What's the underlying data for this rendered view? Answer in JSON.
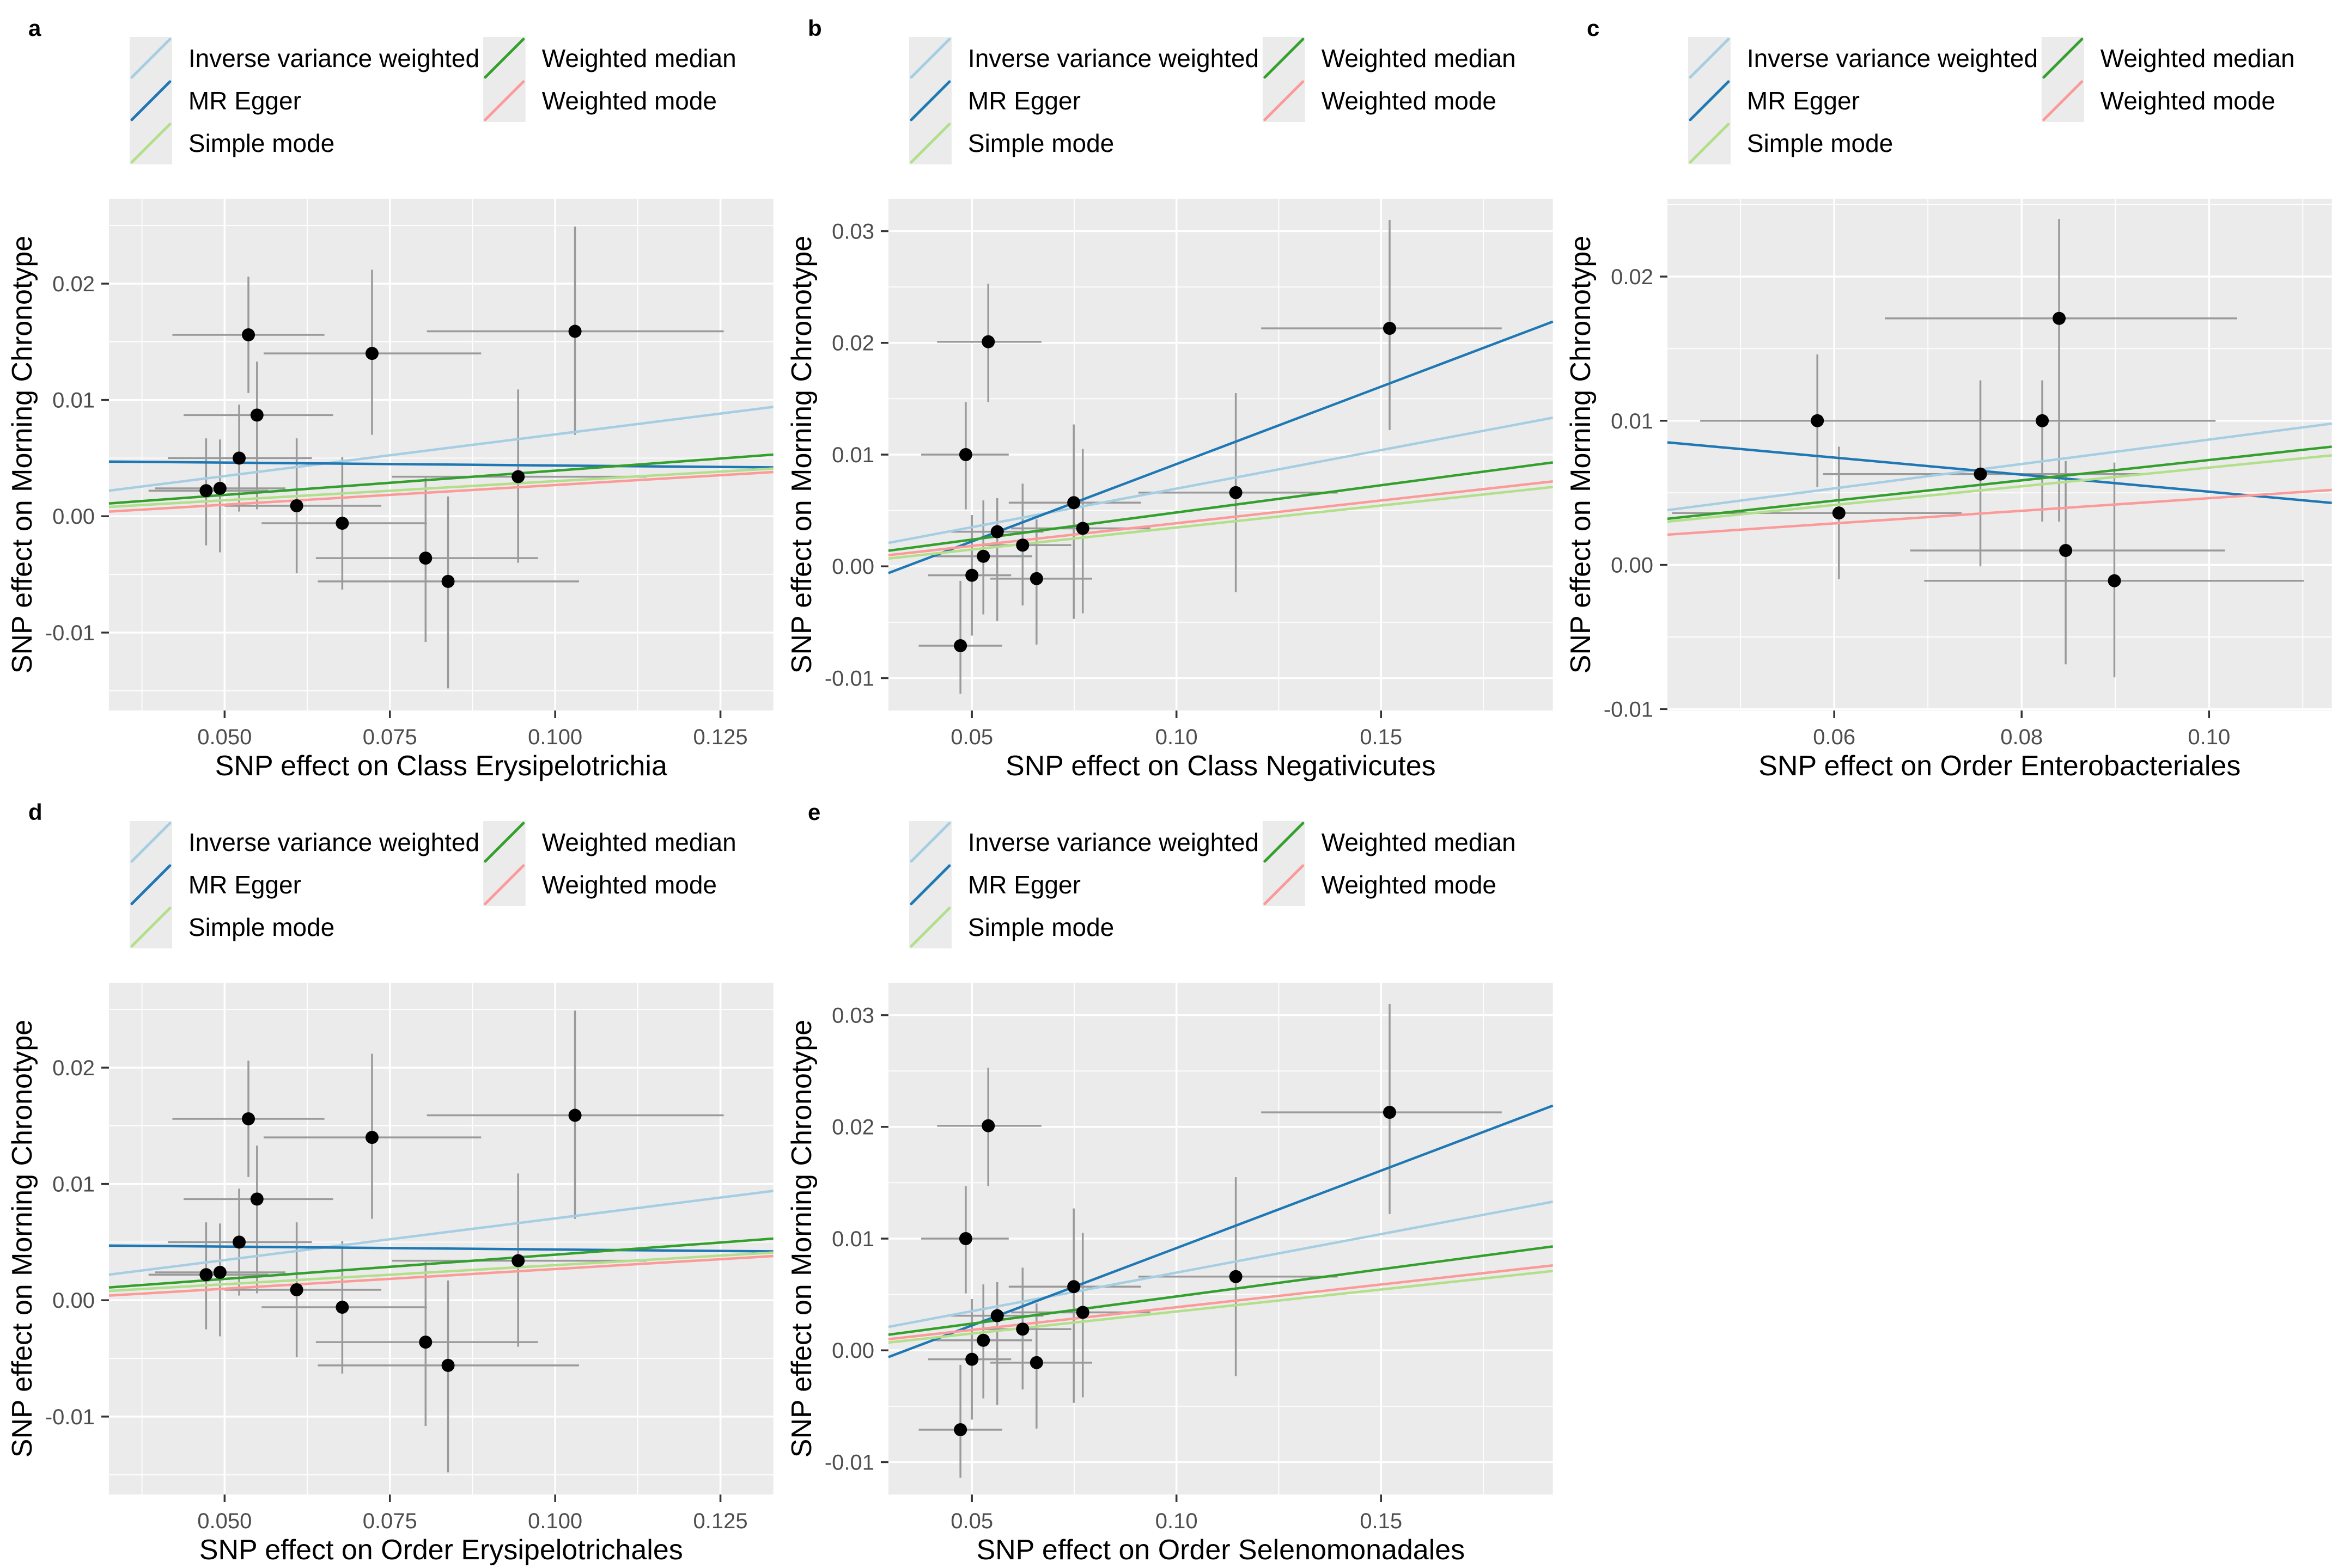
{
  "styles": {
    "figure_bg": "#ffffff",
    "panel_bg": "#ebebeb",
    "grid_color": "#ffffff",
    "tick_label_color": "#4d4d4d",
    "axis_title_color": "#000000",
    "tick_mark_color": "#333333",
    "point_color": "#000000",
    "errorbar_color": "#9a9a9a",
    "legend_key_bg": "#ebebeb",
    "legend_text_color": "#000000",
    "panel_tag_color": "#000000"
  },
  "legend": {
    "columns": [
      [
        "Inverse variance weighted",
        "MR Egger",
        "Simple mode"
      ],
      [
        "Weighted median",
        "Weighted mode"
      ]
    ],
    "colors": {
      "Inverse variance weighted": "#a6cee3",
      "MR Egger": "#1f78b4",
      "Simple mode": "#b2df8a",
      "Weighted median": "#33a02c",
      "Weighted mode": "#fb9a99"
    }
  },
  "chart_data": [
    {
      "type": "scatter",
      "tag": "a",
      "xlabel": "SNP effect on Class Erysipelotrichia",
      "ylabel": "SNP effect on Morning Chronotype",
      "xlim": [
        0.0325,
        0.133
      ],
      "ylim": [
        -0.0167,
        0.0273
      ],
      "xticks": [
        0.05,
        0.075,
        0.1,
        0.125
      ],
      "xtick_labels": [
        "0.050",
        "0.075",
        "0.100",
        "0.125"
      ],
      "yticks": [
        -0.01,
        0.0,
        0.01,
        0.02
      ],
      "ytick_labels": [
        "-0.01",
        "0.00",
        "0.01",
        "0.02"
      ],
      "points": [
        [
          0.0536,
          0.0156,
          0.0421,
          0.0651,
          0.0106,
          0.0206
        ],
        [
          0.0723,
          0.014,
          0.0559,
          0.0888,
          0.007,
          0.0212
        ],
        [
          0.103,
          0.0159,
          0.0806,
          0.1255,
          0.007,
          0.0249
        ],
        [
          0.0549,
          0.0087,
          0.0438,
          0.0664,
          0.0006,
          0.0133
        ],
        [
          0.0522,
          0.005,
          0.0414,
          0.0632,
          0.0004,
          0.0096
        ],
        [
          0.0472,
          0.0022,
          0.0385,
          0.0566,
          -0.0025,
          0.0067
        ],
        [
          0.0493,
          0.0024,
          0.0395,
          0.0592,
          -0.0031,
          0.0066
        ],
        [
          0.0609,
          0.0009,
          0.05,
          0.0737,
          -0.0049,
          0.0067
        ],
        [
          0.0678,
          -0.0006,
          0.0556,
          0.0806,
          -0.0063,
          0.0051
        ],
        [
          0.0804,
          -0.0036,
          0.0638,
          0.0974,
          -0.0108,
          0.0033
        ],
        [
          0.0838,
          -0.0056,
          0.0641,
          0.1036,
          -0.0148,
          0.0017
        ],
        [
          0.0944,
          0.0034,
          0.0753,
          0.1138,
          -0.004,
          0.0109
        ]
      ],
      "lines": [
        {
          "method": "Inverse variance weighted",
          "y": [
            0.0022,
            0.0094
          ]
        },
        {
          "method": "MR Egger",
          "y": [
            0.0047,
            0.0042
          ]
        },
        {
          "method": "Simple mode",
          "y": [
            0.0008,
            0.0041
          ]
        },
        {
          "method": "Weighted median",
          "y": [
            0.0011,
            0.0053
          ]
        },
        {
          "method": "Weighted mode",
          "y": [
            0.0004,
            0.0038
          ]
        }
      ]
    },
    {
      "type": "scatter",
      "tag": "b",
      "xlabel": "SNP effect on Class Negativicutes",
      "ylabel": "SNP effect on Morning Chronotype",
      "xlim": [
        0.0296,
        0.192
      ],
      "ylim": [
        -0.0129,
        0.0329
      ],
      "xticks": [
        0.05,
        0.1,
        0.15
      ],
      "xtick_labels": [
        "0.05",
        "0.10",
        "0.15"
      ],
      "yticks": [
        -0.01,
        0.0,
        0.01,
        0.02,
        0.03
      ],
      "ytick_labels": [
        "-0.01",
        "0.00",
        "0.01",
        "0.02",
        "0.03"
      ],
      "points": [
        [
          0.054,
          0.0201,
          0.0415,
          0.067,
          0.0147,
          0.0253
        ],
        [
          0.0485,
          0.01,
          0.0376,
          0.059,
          0.0051,
          0.0147
        ],
        [
          0.1521,
          0.0213,
          0.1207,
          0.1795,
          0.0122,
          0.031
        ],
        [
          0.1145,
          0.0066,
          0.0907,
          0.1394,
          -0.0023,
          0.0155
        ],
        [
          0.0749,
          0.0057,
          0.059,
          0.0913,
          -0.0047,
          0.0127
        ],
        [
          0.0771,
          0.0034,
          0.0596,
          0.0936,
          -0.0042,
          0.0105
        ],
        [
          0.0562,
          0.0031,
          0.0449,
          0.0675,
          -0.0049,
          0.0061
        ],
        [
          0.0624,
          0.0019,
          0.0517,
          0.0743,
          -0.0035,
          0.0074
        ],
        [
          0.0528,
          0.0009,
          0.041,
          0.0647,
          -0.0043,
          0.0059
        ],
        [
          0.05,
          -0.0008,
          0.0393,
          0.0596,
          -0.0062,
          0.0046
        ],
        [
          0.0658,
          -0.0011,
          0.0545,
          0.0794,
          -0.007,
          0.0042
        ],
        [
          0.0472,
          -0.0071,
          0.037,
          0.0574,
          -0.0114,
          -0.0013
        ]
      ],
      "lines": [
        {
          "method": "Inverse variance weighted",
          "y": [
            0.0021,
            0.0133
          ]
        },
        {
          "method": "MR Egger",
          "y": [
            -0.0006,
            0.0219
          ]
        },
        {
          "method": "Simple mode",
          "y": [
            0.0007,
            0.0071
          ]
        },
        {
          "method": "Weighted median",
          "y": [
            0.0014,
            0.0093
          ]
        },
        {
          "method": "Weighted mode",
          "y": [
            0.001,
            0.0076
          ]
        }
      ]
    },
    {
      "type": "scatter",
      "tag": "c",
      "xlabel": "SNP effect on Order Enterobacteriales",
      "ylabel": "SNP effect on Morning Chronotype",
      "xlim": [
        0.0422,
        0.1131
      ],
      "ylim": [
        -0.0101,
        0.0254
      ],
      "xticks": [
        0.06,
        0.08,
        0.1
      ],
      "xtick_labels": [
        "0.06",
        "0.08",
        "0.10"
      ],
      "yticks": [
        -0.01,
        0.0,
        0.01,
        0.02
      ],
      "ytick_labels": [
        "-0.01",
        "0.00",
        "0.01",
        "0.02"
      ],
      "points": [
        [
          0.084,
          0.0171,
          0.0654,
          0.103,
          0.003,
          0.024
        ],
        [
          0.0582,
          0.01,
          0.0457,
          0.0706,
          0.0054,
          0.0146
        ],
        [
          0.0822,
          0.01,
          0.0637,
          0.1007,
          0.003,
          0.0128
        ],
        [
          0.0756,
          0.0063,
          0.0588,
          0.0931,
          -0.0001,
          0.0128
        ],
        [
          0.0605,
          0.0036,
          0.0427,
          0.0736,
          -0.001,
          0.0082
        ],
        [
          0.0847,
          0.001,
          0.0681,
          0.1017,
          -0.0069,
          0.0072
        ],
        [
          0.0899,
          -0.0011,
          0.0696,
          0.1101,
          -0.0078,
          0.0071
        ]
      ],
      "lines": [
        {
          "method": "Inverse variance weighted",
          "y": [
            0.0038,
            0.0098
          ]
        },
        {
          "method": "MR Egger",
          "y": [
            0.0085,
            0.0043
          ]
        },
        {
          "method": "Simple mode",
          "y": [
            0.003,
            0.0076
          ]
        },
        {
          "method": "Weighted median",
          "y": [
            0.0032,
            0.0082
          ]
        },
        {
          "method": "Weighted mode",
          "y": [
            0.0021,
            0.0052
          ]
        }
      ]
    },
    {
      "type": "scatter",
      "tag": "d",
      "xlabel": "SNP effect on Order Erysipelotrichales",
      "ylabel": "SNP effect on Morning Chronotype",
      "xlim": [
        0.0325,
        0.133
      ],
      "ylim": [
        -0.0167,
        0.0273
      ],
      "xticks": [
        0.05,
        0.075,
        0.1,
        0.125
      ],
      "xtick_labels": [
        "0.050",
        "0.075",
        "0.100",
        "0.125"
      ],
      "yticks": [
        -0.01,
        0.0,
        0.01,
        0.02
      ],
      "ytick_labels": [
        "-0.01",
        "0.00",
        "0.01",
        "0.02"
      ],
      "points": [
        [
          0.0536,
          0.0156,
          0.0421,
          0.0651,
          0.0106,
          0.0206
        ],
        [
          0.0723,
          0.014,
          0.0559,
          0.0888,
          0.007,
          0.0212
        ],
        [
          0.103,
          0.0159,
          0.0806,
          0.1255,
          0.007,
          0.0249
        ],
        [
          0.0549,
          0.0087,
          0.0438,
          0.0664,
          0.0006,
          0.0133
        ],
        [
          0.0522,
          0.005,
          0.0414,
          0.0632,
          0.0004,
          0.0096
        ],
        [
          0.0472,
          0.0022,
          0.0385,
          0.0566,
          -0.0025,
          0.0067
        ],
        [
          0.0493,
          0.0024,
          0.0395,
          0.0592,
          -0.0031,
          0.0066
        ],
        [
          0.0609,
          0.0009,
          0.05,
          0.0737,
          -0.0049,
          0.0067
        ],
        [
          0.0678,
          -0.0006,
          0.0556,
          0.0806,
          -0.0063,
          0.0051
        ],
        [
          0.0804,
          -0.0036,
          0.0638,
          0.0974,
          -0.0108,
          0.0033
        ],
        [
          0.0838,
          -0.0056,
          0.0641,
          0.1036,
          -0.0148,
          0.0017
        ],
        [
          0.0944,
          0.0034,
          0.0753,
          0.1138,
          -0.004,
          0.0109
        ]
      ],
      "lines": [
        {
          "method": "Inverse variance weighted",
          "y": [
            0.0022,
            0.0094
          ]
        },
        {
          "method": "MR Egger",
          "y": [
            0.0047,
            0.0042
          ]
        },
        {
          "method": "Simple mode",
          "y": [
            0.0008,
            0.0041
          ]
        },
        {
          "method": "Weighted median",
          "y": [
            0.0011,
            0.0053
          ]
        },
        {
          "method": "Weighted mode",
          "y": [
            0.0004,
            0.0038
          ]
        }
      ]
    },
    {
      "type": "scatter",
      "tag": "e",
      "xlabel": "SNP effect on Order Selenomonadales",
      "ylabel": "SNP effect on Morning Chronotype",
      "xlim": [
        0.0296,
        0.192
      ],
      "ylim": [
        -0.0129,
        0.0329
      ],
      "xticks": [
        0.05,
        0.1,
        0.15
      ],
      "xtick_labels": [
        "0.05",
        "0.10",
        "0.15"
      ],
      "yticks": [
        -0.01,
        0.0,
        0.01,
        0.02,
        0.03
      ],
      "ytick_labels": [
        "-0.01",
        "0.00",
        "0.01",
        "0.02",
        "0.03"
      ],
      "points": [
        [
          0.054,
          0.0201,
          0.0415,
          0.067,
          0.0147,
          0.0253
        ],
        [
          0.0485,
          0.01,
          0.0376,
          0.059,
          0.0051,
          0.0147
        ],
        [
          0.1521,
          0.0213,
          0.1207,
          0.1795,
          0.0122,
          0.031
        ],
        [
          0.1145,
          0.0066,
          0.0907,
          0.1394,
          -0.0023,
          0.0155
        ],
        [
          0.0749,
          0.0057,
          0.059,
          0.0913,
          -0.0047,
          0.0127
        ],
        [
          0.0771,
          0.0034,
          0.0596,
          0.0936,
          -0.0042,
          0.0105
        ],
        [
          0.0562,
          0.0031,
          0.0449,
          0.0675,
          -0.0049,
          0.0061
        ],
        [
          0.0624,
          0.0019,
          0.0517,
          0.0743,
          -0.0035,
          0.0074
        ],
        [
          0.0528,
          0.0009,
          0.041,
          0.0647,
          -0.0043,
          0.0059
        ],
        [
          0.05,
          -0.0008,
          0.0393,
          0.0596,
          -0.0062,
          0.0046
        ],
        [
          0.0658,
          -0.0011,
          0.0545,
          0.0794,
          -0.007,
          0.0042
        ],
        [
          0.0472,
          -0.0071,
          0.037,
          0.0574,
          -0.0114,
          -0.0013
        ]
      ],
      "lines": [
        {
          "method": "Inverse variance weighted",
          "y": [
            0.0021,
            0.0133
          ]
        },
        {
          "method": "MR Egger",
          "y": [
            -0.0006,
            0.0219
          ]
        },
        {
          "method": "Simple mode",
          "y": [
            0.0007,
            0.0071
          ]
        },
        {
          "method": "Weighted median",
          "y": [
            0.0014,
            0.0093
          ]
        },
        {
          "method": "Weighted mode",
          "y": [
            0.001,
            0.0076
          ]
        }
      ]
    }
  ]
}
